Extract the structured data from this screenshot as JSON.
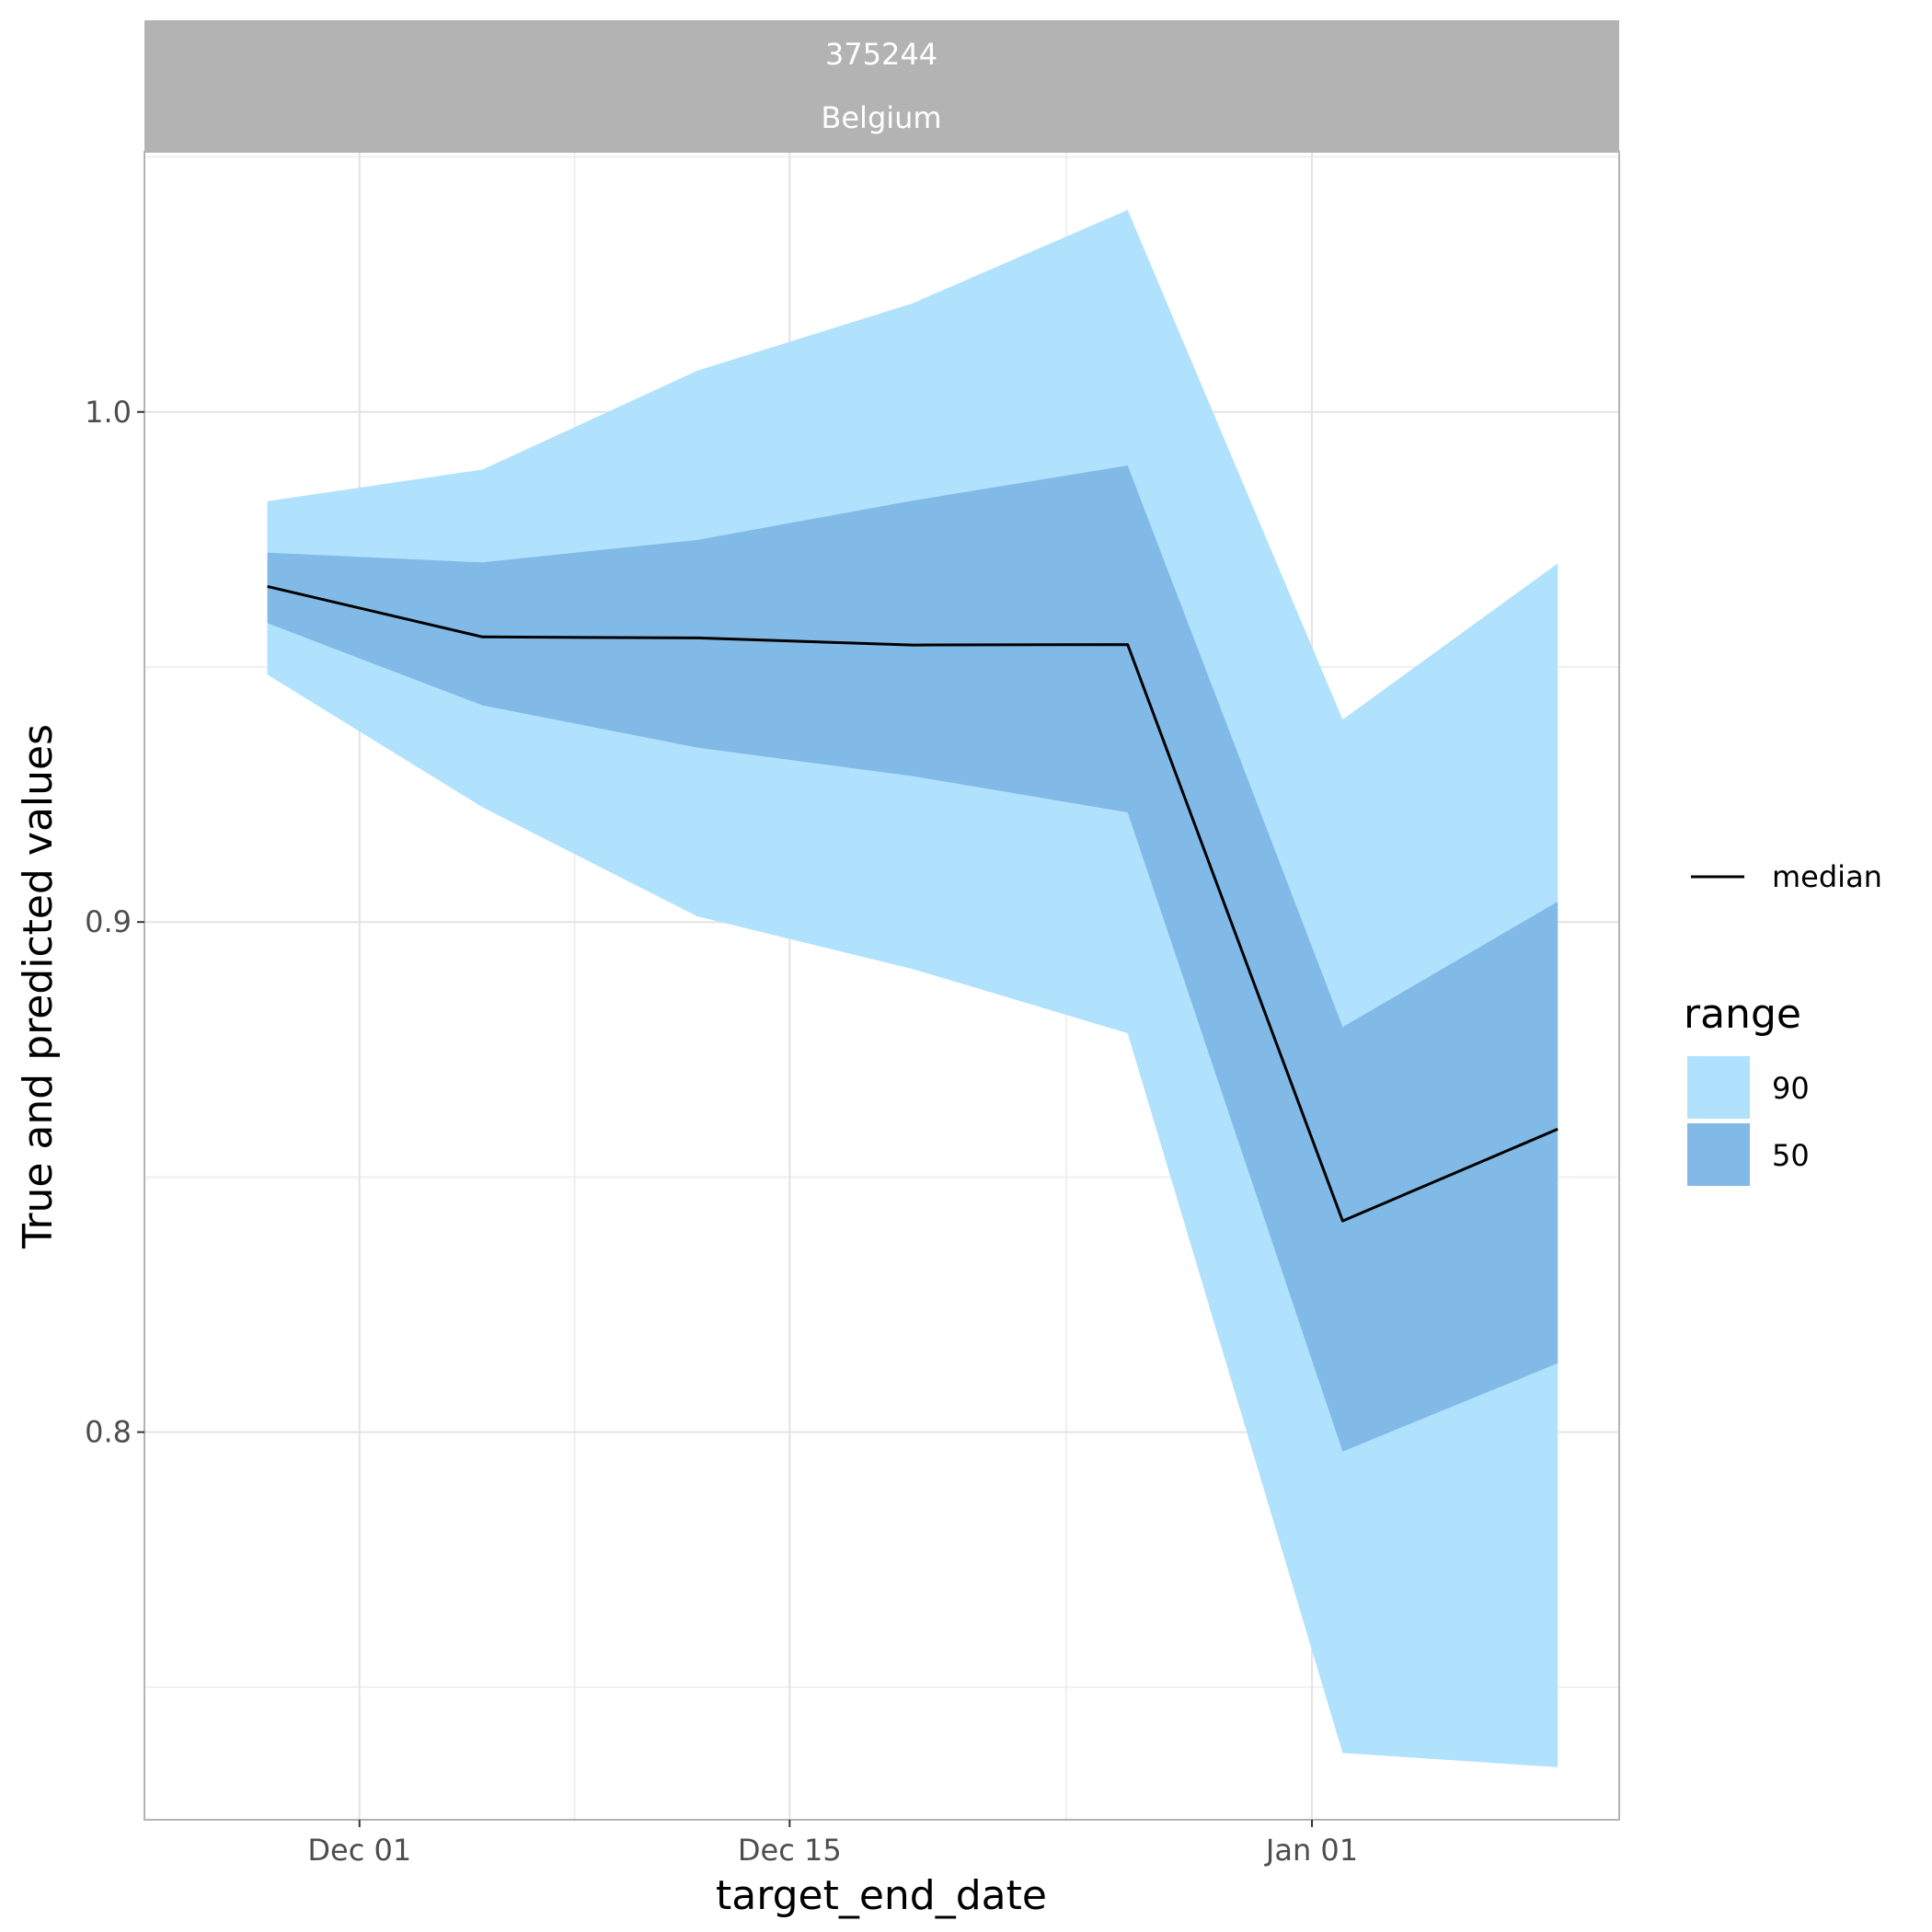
{
  "chart_data": {
    "type": "area",
    "panel": {
      "strip_lines": [
        "375244",
        "Belgium"
      ]
    },
    "xlabel": "target_end_date",
    "ylabel": "True and predicted values",
    "x": [
      "2020-11-28",
      "2020-12-05",
      "2020-12-12",
      "2020-12-19",
      "2020-12-26",
      "2021-01-02",
      "2021-01-09"
    ],
    "xlim": [
      "2020-11-24",
      "2021-01-11"
    ],
    "x_ticks": [
      {
        "date": "2020-12-01",
        "label": "Dec 01"
      },
      {
        "date": "2020-12-15",
        "label": "Dec 15"
      },
      {
        "date": "2021-01-01",
        "label": "Jan 01"
      }
    ],
    "x_minor_ticks": [
      "2020-12-08",
      "2020-12-24"
    ],
    "ylim": [
      0.724,
      1.051
    ],
    "y_ticks": [
      0.8,
      0.9,
      1.0
    ],
    "y_tick_labels": [
      "0.8",
      "0.9",
      "1.0"
    ],
    "y_minor_ticks": [
      0.75,
      0.85,
      0.95,
      1.05
    ],
    "grid": true,
    "ranges": [
      {
        "name": "90",
        "color": "#b0e1fd",
        "lower": [
          0.9485,
          0.9225,
          0.9011,
          0.8908,
          0.8782,
          0.7371,
          0.7343
        ],
        "upper": [
          0.9825,
          0.9887,
          1.0081,
          1.0213,
          1.0396,
          0.9397,
          0.9703
        ]
      },
      {
        "name": "50",
        "color": "#81bae6",
        "lower": [
          0.9586,
          0.9425,
          0.9342,
          0.9286,
          0.9215,
          0.7962,
          0.8135
        ],
        "upper": [
          0.9724,
          0.9705,
          0.9749,
          0.9826,
          0.9895,
          0.8794,
          0.904
        ]
      }
    ],
    "series": [
      {
        "name": "median",
        "color": "#000000",
        "values": [
          0.9658,
          0.9559,
          0.9557,
          0.9543,
          0.9544,
          0.8414,
          0.8594
        ]
      }
    ],
    "legend": {
      "position": "right",
      "line_label": "median",
      "fill_title": "range",
      "fill_items": [
        "90",
        "50"
      ]
    }
  }
}
